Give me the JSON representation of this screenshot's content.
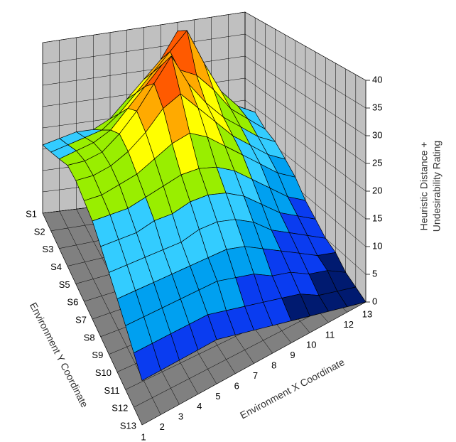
{
  "chart_data": {
    "type": "surface",
    "x_label": "Environment X Coordinate",
    "y_label": "Environment Y Coordinate",
    "z_label": [
      "Heuristic Distance +",
      "Undesirability Rating"
    ],
    "x_categories": [
      "1",
      "2",
      "3",
      "4",
      "5",
      "6",
      "7",
      "8",
      "9",
      "10",
      "11",
      "12",
      "13"
    ],
    "y_categories": [
      "S1",
      "S2",
      "S3",
      "S4",
      "S5",
      "S6",
      "S7",
      "S8",
      "S9",
      "S10",
      "S11",
      "S12",
      "S13"
    ],
    "z": [
      [
        16,
        17,
        18,
        18,
        20,
        24,
        28,
        32,
        38,
        30,
        24,
        20,
        18
      ],
      [
        18,
        19,
        20,
        21,
        24,
        28,
        32,
        36,
        40,
        32,
        25,
        21,
        19
      ],
      [
        20,
        21,
        22,
        24,
        28,
        32,
        36,
        34,
        32,
        28,
        23,
        20,
        17
      ],
      [
        22,
        22,
        23,
        26,
        30,
        35,
        40,
        33,
        28,
        24,
        21,
        18,
        16
      ],
      [
        22,
        22,
        23,
        25,
        28,
        32,
        34,
        30,
        26,
        22,
        19,
        16,
        14
      ],
      [
        21,
        21,
        22,
        23,
        25,
        27,
        28,
        26,
        23,
        20,
        17,
        14,
        12
      ],
      [
        20,
        20,
        20,
        21,
        22,
        23,
        23,
        22,
        20,
        17,
        14,
        11,
        9
      ],
      [
        18,
        18,
        18,
        19,
        19,
        20,
        20,
        19,
        17,
        14,
        11,
        9,
        7
      ],
      [
        16,
        16,
        16,
        16,
        16,
        17,
        17,
        16,
        14,
        11,
        9,
        7,
        5
      ],
      [
        14,
        14,
        14,
        14,
        14,
        14,
        14,
        13,
        11,
        9,
        7,
        5,
        4
      ],
      [
        12,
        12,
        12,
        12,
        12,
        12,
        11,
        10,
        8,
        7,
        5,
        4,
        2
      ],
      [
        10,
        10,
        10,
        10,
        10,
        9,
        8,
        7,
        6,
        5,
        3,
        2,
        1
      ],
      [
        8,
        8,
        8,
        8,
        8,
        7,
        6,
        5,
        4,
        3,
        2,
        1,
        0
      ]
    ],
    "zlim": [
      0,
      40
    ],
    "zticks": [
      0,
      5,
      10,
      15,
      20,
      25,
      30,
      35,
      40
    ],
    "band_colors": [
      "#001a70",
      "#0a3cf0",
      "#00a0f0",
      "#33ccff",
      "#99ee00",
      "#ffff00",
      "#ffaa00",
      "#ff5a00"
    ],
    "wall_color": "#c0c0c0",
    "floor_color": "#808080",
    "grid": true
  }
}
